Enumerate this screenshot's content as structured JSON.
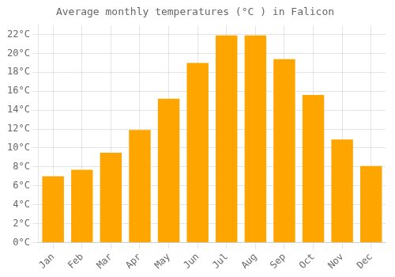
{
  "chart_data": {
    "type": "bar",
    "title": "Average monthly temperatures (°C ) in Falicon",
    "categories": [
      "Jan",
      "Feb",
      "Mar",
      "Apr",
      "May",
      "Jun",
      "Jul",
      "Aug",
      "Sep",
      "Oct",
      "Nov",
      "Dec"
    ],
    "values": [
      7.0,
      7.7,
      9.5,
      11.9,
      15.2,
      19.0,
      21.9,
      21.9,
      19.4,
      15.6,
      10.9,
      8.1
    ],
    "color": "#FFA500",
    "ylim": [
      0,
      23
    ],
    "yticks": [
      {
        "value": 0,
        "label": "0°C"
      },
      {
        "value": 2,
        "label": "2°C"
      },
      {
        "value": 4,
        "label": "4°C"
      },
      {
        "value": 6,
        "label": "6°C"
      },
      {
        "value": 8,
        "label": "8°C"
      },
      {
        "value": 10,
        "label": "10°C"
      },
      {
        "value": 12,
        "label": "12°C"
      },
      {
        "value": 14,
        "label": "14°C"
      },
      {
        "value": 16,
        "label": "16°C"
      },
      {
        "value": 18,
        "label": "18°C"
      },
      {
        "value": 20,
        "label": "20°C"
      },
      {
        "value": 22,
        "label": "22°C"
      }
    ],
    "grid": true
  }
}
